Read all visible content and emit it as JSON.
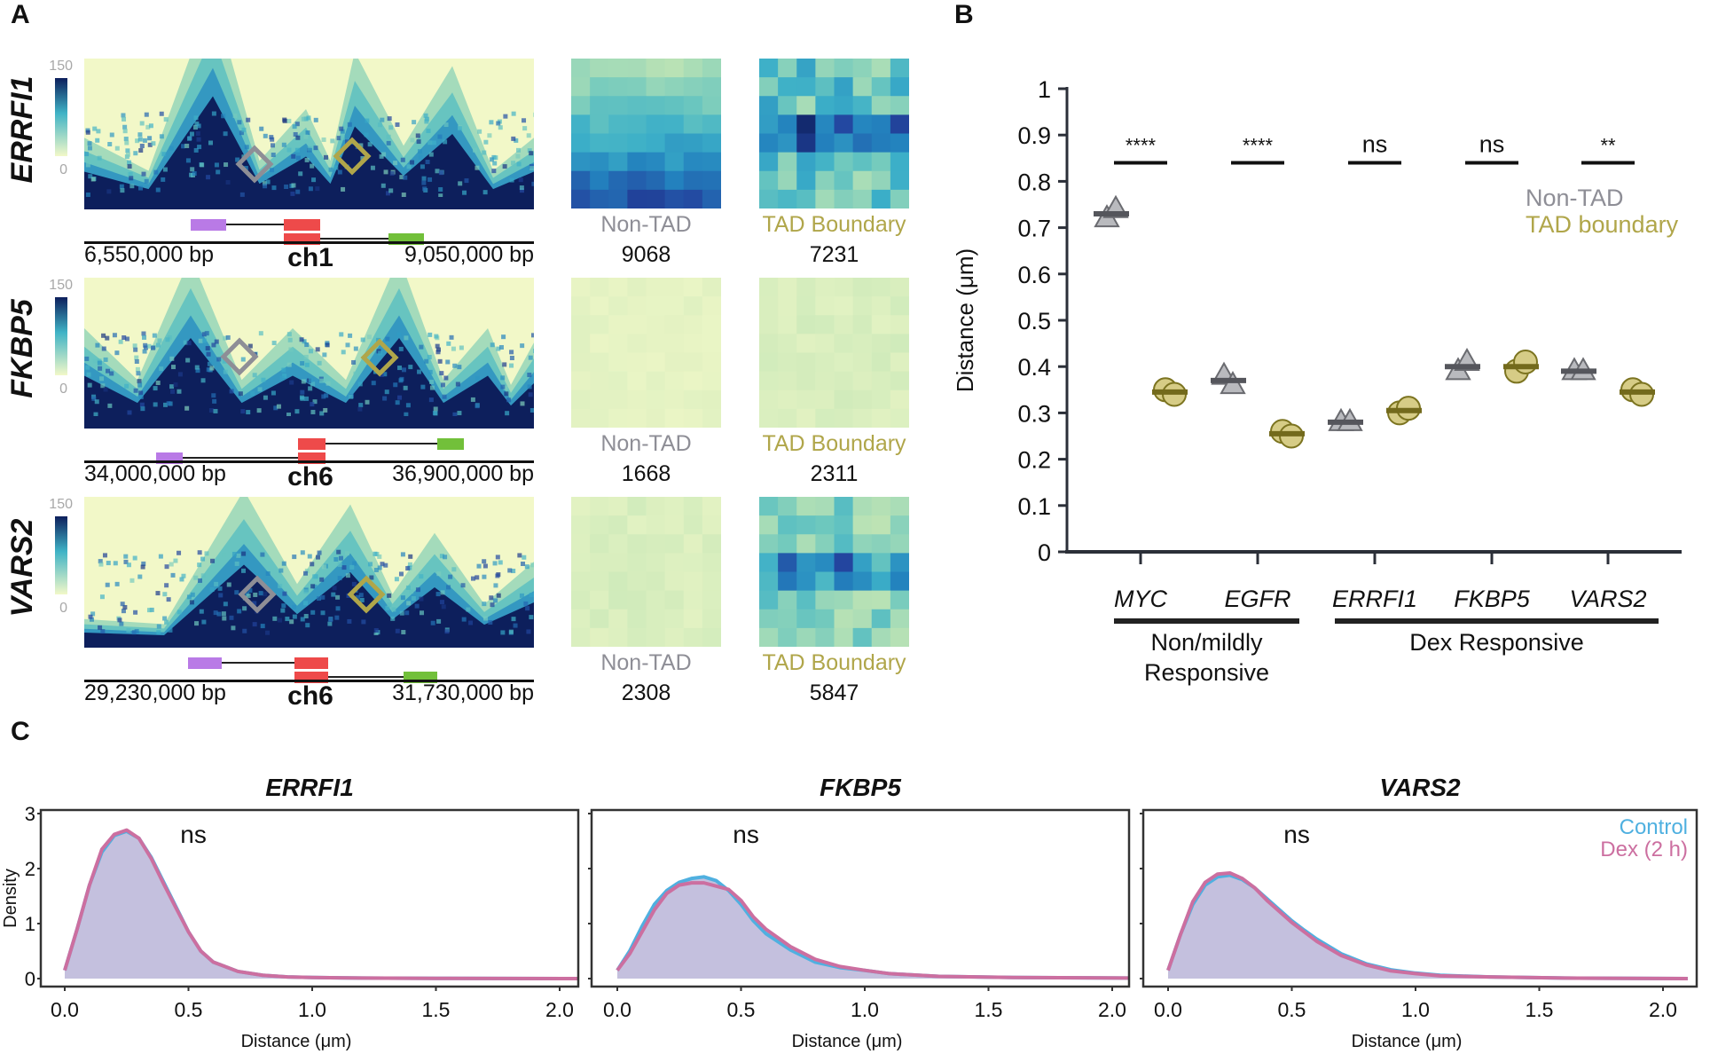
{
  "panels": {
    "a": "A",
    "b": "B",
    "c": "C"
  },
  "colors": {
    "non_tad": "#8e8e96",
    "tad_boundary": "#b0a64a",
    "control": "#4fb0e0",
    "dex": "#cc6fa0",
    "fill": "#c4c0de",
    "heat_low": "#f2f8c8",
    "heat_mid": "#3fb3c6",
    "heat_high": "#0d1f5c",
    "gene_purple": "#b97ae6",
    "gene_red": "#ee4a4a",
    "gene_green": "#72c03a"
  },
  "panel_a": {
    "colorbar": {
      "max_label": "150",
      "min_label": "0"
    },
    "rows": [
      {
        "gene": "ERRFI1",
        "start": "6,550,000 bp",
        "end": "9,050,000 bp",
        "chrom": "ch1",
        "non_tad_label": "Non-TAD",
        "non_tad_count": "9068",
        "tad_label": "TAD Boundary",
        "tad_count": "7231",
        "non_tad_level": 0.55,
        "tad_level": 0.6
      },
      {
        "gene": "FKBP5",
        "start": "34,000,000 bp",
        "end": "36,900,000 bp",
        "chrom": "ch6",
        "non_tad_label": "Non-TAD",
        "non_tad_count": "1668",
        "tad_label": "TAD Boundary",
        "tad_count": "2311",
        "non_tad_level": 0.08,
        "tad_level": 0.15
      },
      {
        "gene": "VARS2",
        "start": "29,230,000 bp",
        "end": "31,730,000 bp",
        "chrom": "ch6",
        "non_tad_label": "Non-TAD",
        "non_tad_count": "2308",
        "tad_label": "TAD Boundary",
        "tad_count": "5847",
        "non_tad_level": 0.15,
        "tad_level": 0.5
      }
    ]
  },
  "chart_data": [
    {
      "type": "scatter",
      "title": "",
      "ylabel": "Distance (μm)",
      "ylim": [
        0,
        1
      ],
      "yticks": [
        "0",
        "0.1",
        "0.2",
        "0.3",
        "0.4",
        "0.5",
        "0.6",
        "0.7",
        "0.8",
        "0.9",
        "1"
      ],
      "categories": [
        "MYC",
        "EGFR",
        "ERRFI1",
        "FKBP5",
        "VARS2"
      ],
      "groups": [
        {
          "label": "Non/mildly\nResponsive",
          "line1": "Non/mildly",
          "line2": "Responsive",
          "categories": [
            "MYC",
            "EGFR"
          ]
        },
        {
          "label": "Dex Responsive",
          "line1": "Dex Responsive",
          "line2": "",
          "categories": [
            "ERRFI1",
            "FKBP5",
            "VARS2"
          ]
        }
      ],
      "legend": {
        "position": "top-right",
        "entries": [
          "Non-TAD",
          "TAD boundary"
        ]
      },
      "significance": [
        "****",
        "****",
        "ns",
        "ns",
        "**"
      ],
      "series": [
        {
          "name": "Non-TAD",
          "marker": "triangle",
          "means": [
            0.73,
            0.37,
            0.28,
            0.4,
            0.39
          ],
          "points": [
            [
              0.72,
              0.74
            ],
            [
              0.38,
              0.36
            ],
            [
              0.28,
              0.28
            ],
            [
              0.39,
              0.41
            ],
            [
              0.39,
              0.39
            ]
          ]
        },
        {
          "name": "TAD boundary",
          "marker": "circle",
          "means": [
            0.345,
            0.255,
            0.305,
            0.4,
            0.345
          ],
          "points": [
            [
              0.35,
              0.34
            ],
            [
              0.26,
              0.25
            ],
            [
              0.3,
              0.31
            ],
            [
              0.39,
              0.41
            ],
            [
              0.35,
              0.34
            ]
          ]
        }
      ]
    },
    {
      "type": "area",
      "title": "ERRFI1",
      "xlabel": "Distance (μm)",
      "ylabel": "Density",
      "xlim": [
        -0.1,
        2.1
      ],
      "ylim": [
        -0.1,
        3.1
      ],
      "xticks": [
        "0.0",
        "0.5",
        "1.0",
        "1.5",
        "2.0"
      ],
      "yticks": [
        "0",
        "1",
        "2",
        "3"
      ],
      "annotation": "ns",
      "x": [
        0.0,
        0.05,
        0.1,
        0.15,
        0.2,
        0.25,
        0.3,
        0.35,
        0.4,
        0.45,
        0.5,
        0.55,
        0.6,
        0.7,
        0.8,
        0.9,
        1.0,
        1.2,
        1.5,
        2.1
      ],
      "series": [
        {
          "name": "Control",
          "values": [
            0.15,
            0.9,
            1.7,
            2.3,
            2.6,
            2.68,
            2.55,
            2.2,
            1.75,
            1.3,
            0.85,
            0.5,
            0.3,
            0.13,
            0.06,
            0.03,
            0.02,
            0.01,
            0.005,
            0.0
          ]
        },
        {
          "name": "Dex (2 h)",
          "values": [
            0.15,
            0.9,
            1.7,
            2.35,
            2.62,
            2.7,
            2.55,
            2.18,
            1.72,
            1.28,
            0.85,
            0.5,
            0.3,
            0.13,
            0.06,
            0.03,
            0.02,
            0.01,
            0.005,
            0.0
          ]
        }
      ]
    },
    {
      "type": "area",
      "title": "FKBP5",
      "xlabel": "Distance (μm)",
      "ylabel": "",
      "xlim": [
        -0.1,
        2.1
      ],
      "ylim": [
        -0.1,
        3.1
      ],
      "xticks": [
        "0.0",
        "0.5",
        "1.0",
        "1.5",
        "2.0"
      ],
      "yticks": [
        "",
        "",
        "",
        ""
      ],
      "annotation": "ns",
      "x": [
        0.0,
        0.05,
        0.1,
        0.15,
        0.2,
        0.25,
        0.3,
        0.35,
        0.4,
        0.45,
        0.5,
        0.55,
        0.6,
        0.7,
        0.8,
        0.9,
        1.0,
        1.1,
        1.3,
        1.6,
        2.1
      ],
      "series": [
        {
          "name": "Control",
          "values": [
            0.15,
            0.5,
            0.95,
            1.35,
            1.6,
            1.75,
            1.82,
            1.85,
            1.78,
            1.6,
            1.35,
            1.05,
            0.82,
            0.52,
            0.3,
            0.2,
            0.15,
            0.09,
            0.04,
            0.02,
            0.01
          ]
        },
        {
          "name": "Dex (2 h)",
          "values": [
            0.15,
            0.45,
            0.85,
            1.25,
            1.55,
            1.7,
            1.74,
            1.74,
            1.68,
            1.62,
            1.42,
            1.12,
            0.9,
            0.58,
            0.35,
            0.22,
            0.15,
            0.09,
            0.04,
            0.02,
            0.01
          ]
        }
      ]
    },
    {
      "type": "area",
      "title": "VARS2",
      "xlabel": "Distance (μm)",
      "ylabel": "",
      "xlim": [
        -0.1,
        2.1
      ],
      "ylim": [
        -0.1,
        3.1
      ],
      "xticks": [
        "0.0",
        "0.5",
        "1.0",
        "1.5",
        "2.0"
      ],
      "yticks": [
        "",
        "",
        "",
        ""
      ],
      "annotation": "ns",
      "legend": {
        "position": "top-right",
        "entries": [
          "Control",
          "Dex (2 h)"
        ]
      },
      "x": [
        0.0,
        0.05,
        0.1,
        0.15,
        0.2,
        0.25,
        0.3,
        0.35,
        0.4,
        0.45,
        0.5,
        0.55,
        0.6,
        0.7,
        0.8,
        0.9,
        1.0,
        1.1,
        1.3,
        1.6,
        2.1
      ],
      "series": [
        {
          "name": "Control",
          "values": [
            0.15,
            0.8,
            1.35,
            1.7,
            1.85,
            1.88,
            1.8,
            1.65,
            1.45,
            1.25,
            1.05,
            0.88,
            0.72,
            0.45,
            0.27,
            0.16,
            0.1,
            0.06,
            0.03,
            0.01,
            0.0
          ]
        },
        {
          "name": "Dex (2 h)",
          "values": [
            0.15,
            0.8,
            1.4,
            1.75,
            1.9,
            1.92,
            1.82,
            1.65,
            1.42,
            1.22,
            1.02,
            0.85,
            0.68,
            0.42,
            0.25,
            0.14,
            0.09,
            0.05,
            0.03,
            0.01,
            0.0
          ]
        }
      ]
    }
  ]
}
